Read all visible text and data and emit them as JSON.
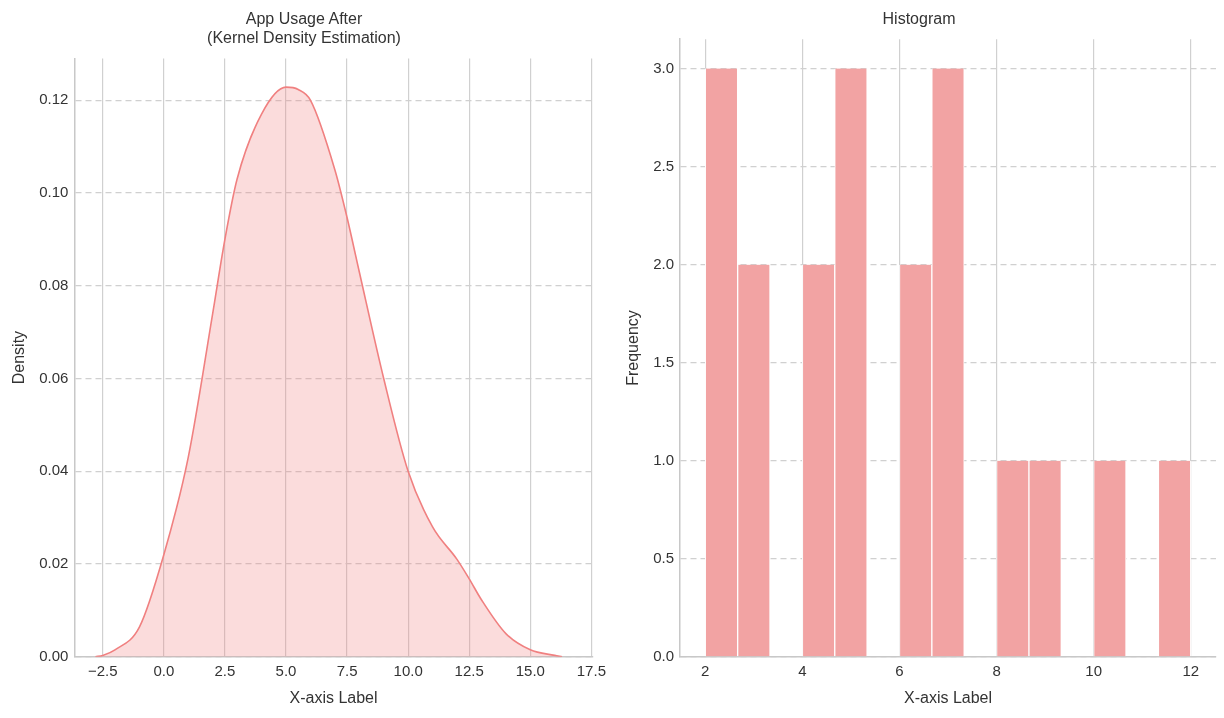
{
  "chart_data": [
    {
      "type": "area",
      "title": "App Usage After\n(Kernel Density Estimation)",
      "xlabel": "X-axis Label",
      "ylabel": "Density",
      "color": "#f08080",
      "x": [
        -2.8,
        -2.5,
        -2,
        -1,
        0,
        1,
        2,
        2.5,
        3,
        4,
        5,
        5.5,
        6,
        7,
        7.5,
        8,
        9,
        10,
        11,
        12,
        12.5,
        13,
        14,
        15,
        16,
        16.3
      ],
      "values": [
        0,
        0.0003,
        0.0015,
        0.0064,
        0.022,
        0.043,
        0.074,
        0.09,
        0.103,
        0.117,
        0.1228,
        0.1223,
        0.12,
        0.105,
        0.0947,
        0.083,
        0.06,
        0.04,
        0.028,
        0.021,
        0.0168,
        0.0123,
        0.005,
        0.0015,
        0.0003,
        0
      ],
      "xlim": [
        -3.66,
        17.55
      ],
      "ylim": [
        0,
        0.129
      ],
      "xticks": [
        {
          "value": -2.5,
          "label": "−2.5"
        },
        {
          "value": 0,
          "label": "0.0"
        },
        {
          "value": 2.5,
          "label": "2.5"
        },
        {
          "value": 5,
          "label": "5.0"
        },
        {
          "value": 7.5,
          "label": "7.5"
        },
        {
          "value": 10,
          "label": "10.0"
        },
        {
          "value": 12.5,
          "label": "12.5"
        },
        {
          "value": 15,
          "label": "15.0"
        },
        {
          "value": 17.5,
          "label": "17.5"
        }
      ],
      "yticks": [
        {
          "value": 0,
          "label": "0.00"
        },
        {
          "value": 0.02,
          "label": "0.02"
        },
        {
          "value": 0.04,
          "label": "0.04"
        },
        {
          "value": 0.06,
          "label": "0.06"
        },
        {
          "value": 0.08,
          "label": "0.08"
        },
        {
          "value": 0.1,
          "label": "0.10"
        },
        {
          "value": 0.12,
          "label": "0.12"
        }
      ],
      "grid": true,
      "legend": false
    },
    {
      "type": "histogram",
      "title": "Histogram",
      "xlabel": "X-axis Label",
      "ylabel": "Frequency",
      "color": "#f2a3a3",
      "bins": [
        2,
        2.6667,
        3.3333,
        4,
        4.6667,
        5.3333,
        6,
        6.6667,
        7.3333,
        8,
        8.6667,
        9.3333,
        10,
        10.6667,
        11.3333,
        12
      ],
      "values": [
        3,
        2,
        0,
        2,
        3,
        0,
        2,
        3,
        0,
        1,
        1,
        0,
        1,
        0,
        1
      ],
      "xlim": [
        1.48,
        12.52
      ],
      "ylim": [
        0,
        3.15
      ],
      "xticks": [
        2,
        4,
        6,
        8,
        10,
        12
      ],
      "yticks": [
        {
          "value": 0,
          "label": "0.0"
        },
        {
          "value": 0.5,
          "label": "0.5"
        },
        {
          "value": 1,
          "label": "1.0"
        },
        {
          "value": 1.5,
          "label": "1.5"
        },
        {
          "value": 2,
          "label": "2.0"
        },
        {
          "value": 2.5,
          "label": "2.5"
        },
        {
          "value": 3,
          "label": "3.0"
        }
      ],
      "grid": true,
      "legend": false
    }
  ]
}
